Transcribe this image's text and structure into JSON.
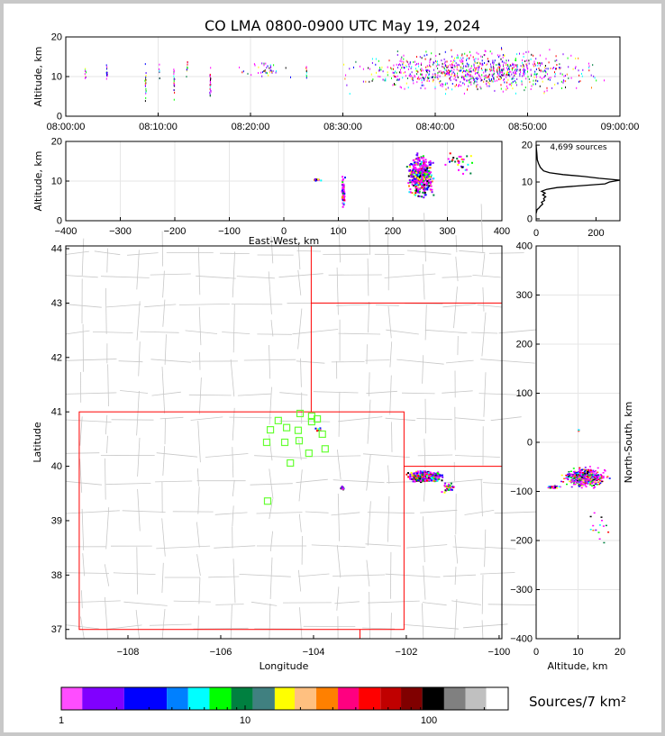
{
  "chart_data": [
    {
      "type": "scatter",
      "name": "time-altitude",
      "title": "CO LMA 0800-0900 UTC May 19, 2024",
      "ylabel": "Altitude, km",
      "xlim_minutes": [
        0,
        60
      ],
      "ylim": [
        0,
        20
      ],
      "xticks": [
        "08:00:00",
        "08:10:00",
        "08:20:00",
        "08:30:00",
        "08:40:00",
        "08:50:00",
        "09:00:00"
      ],
      "yticks": [
        "0",
        "10",
        "20"
      ],
      "clusters": [
        {
          "t": [
            28,
            60
          ],
          "alt": [
            5,
            18
          ],
          "n": 900
        },
        {
          "t": [
            2,
            2.2
          ],
          "alt": [
            9,
            14
          ],
          "n": 12
        },
        {
          "t": [
            4.3,
            4.5
          ],
          "alt": [
            8,
            14
          ],
          "n": 14
        },
        {
          "t": [
            8.5,
            8.7
          ],
          "alt": [
            3,
            14
          ],
          "n": 25
        },
        {
          "t": [
            10,
            10.2
          ],
          "alt": [
            9,
            14
          ],
          "n": 8
        },
        {
          "t": [
            11.6,
            11.8
          ],
          "alt": [
            3,
            15
          ],
          "n": 22
        },
        {
          "t": [
            13,
            13.2
          ],
          "alt": [
            9,
            15
          ],
          "n": 10
        },
        {
          "t": [
            15.5,
            15.7
          ],
          "alt": [
            2,
            16
          ],
          "n": 30
        },
        {
          "t": [
            18,
            25
          ],
          "alt": [
            9,
            15
          ],
          "n": 40
        },
        {
          "t": [
            25.9,
            26.1
          ],
          "alt": [
            8,
            14
          ],
          "n": 10
        }
      ]
    },
    {
      "type": "scatter",
      "name": "eastwest-altitude",
      "xlabel": "East-West, km",
      "ylabel": "Altitude, km",
      "xlim": [
        -400,
        400
      ],
      "ylim": [
        0,
        20
      ],
      "xticks": [
        "−400",
        "−300",
        "−200",
        "−100",
        "0",
        "100",
        "200",
        "300",
        "400"
      ],
      "yticks": [
        "0",
        "10",
        "20"
      ],
      "clusters": [
        {
          "x": [
            222,
            278
          ],
          "alt": [
            5,
            18
          ],
          "n": 500
        },
        {
          "x": [
            104,
            112
          ],
          "alt": [
            2,
            13
          ],
          "n": 60
        },
        {
          "x": [
            52,
            68
          ],
          "alt": [
            10.2,
            10.8
          ],
          "n": 12
        },
        {
          "x": [
            280,
            360
          ],
          "alt": [
            10,
            19
          ],
          "n": 30
        }
      ]
    },
    {
      "type": "line",
      "name": "altitude-histogram",
      "annotation": "4,699 sources",
      "xlim": [
        0,
        280
      ],
      "ylim": [
        -0.5,
        21
      ],
      "xticks": [
        "0",
        "200"
      ],
      "yticks": [
        "0",
        "10",
        "20"
      ],
      "alt": [
        1.5,
        2.5,
        3,
        3.5,
        4,
        4.5,
        5,
        5.5,
        6,
        6.5,
        7,
        7.5,
        8,
        8.5,
        9,
        9.5,
        10,
        10.5,
        11,
        11.5,
        12,
        12.5,
        13,
        14,
        15,
        16,
        17,
        18,
        19,
        20
      ],
      "count": [
        0,
        3,
        10,
        15,
        22,
        18,
        28,
        25,
        32,
        22,
        30,
        18,
        35,
        70,
        150,
        230,
        245,
        280,
        210,
        160,
        90,
        45,
        25,
        14,
        8,
        4,
        3,
        2,
        1,
        0
      ]
    },
    {
      "type": "scatter",
      "name": "plan-view-map",
      "xlabel": "Longitude",
      "ylabel": "Latitude",
      "xlim": [
        -109.34,
        -99.94
      ],
      "ylim": [
        36.83,
        44.05
      ],
      "xticks": [
        "−108",
        "−106",
        "−104",
        "−102",
        "−100"
      ],
      "yticks": [
        "37",
        "38",
        "39",
        "40",
        "41",
        "42",
        "43",
        "44"
      ],
      "stations": [
        [
          -104.76,
          40.84
        ],
        [
          -104.93,
          40.67
        ],
        [
          -104.58,
          40.71
        ],
        [
          -105.01,
          40.44
        ],
        [
          -104.62,
          40.44
        ],
        [
          -104.33,
          40.66
        ],
        [
          -104.31,
          40.47
        ],
        [
          -104.04,
          40.92
        ],
        [
          -104.04,
          40.82
        ],
        [
          -103.92,
          40.87
        ],
        [
          -103.81,
          40.59
        ],
        [
          -103.75,
          40.32
        ],
        [
          -104.1,
          40.24
        ],
        [
          -104.5,
          40.06
        ],
        [
          -104.99,
          39.36
        ],
        [
          -104.29,
          40.97
        ]
      ],
      "clusters": [
        {
          "lon": [
            -102.05,
            -101.2
          ],
          "lat": [
            39.7,
            39.95
          ],
          "n": 450
        },
        {
          "lon": [
            -101.3,
            -100.9
          ],
          "lat": [
            39.5,
            39.75
          ],
          "n": 40
        },
        {
          "lon": [
            -103.45,
            -103.35
          ],
          "lat": [
            39.58,
            39.65
          ],
          "n": 20
        },
        {
          "lon": [
            -104.0,
            -103.8
          ],
          "lat": [
            40.65,
            40.75
          ],
          "n": 8
        }
      ]
    },
    {
      "type": "scatter",
      "name": "altitude-northsouth",
      "xlabel": "Altitude, km",
      "ylabel": "North-South, km",
      "xlim": [
        0,
        20
      ],
      "ylim": [
        -400,
        400
      ],
      "xticks": [
        "0",
        "10",
        "20"
      ],
      "yticks": [
        "−400",
        "−300",
        "−200",
        "−100",
        "0",
        "100",
        "200",
        "300",
        "400"
      ],
      "clusters": [
        {
          "alt": [
            5,
            18
          ],
          "ns": [
            -95,
            -45
          ],
          "n": 450
        },
        {
          "alt": [
            2,
            6
          ],
          "ns": [
            -94,
            -86
          ],
          "n": 40
        },
        {
          "alt": [
            10,
            20
          ],
          "ns": [
            -220,
            -120
          ],
          "n": 15
        },
        {
          "alt": [
            9.8,
            10.2
          ],
          "ns": [
            22,
            32
          ],
          "n": 4
        }
      ]
    },
    {
      "type": "colorbar",
      "name": "density-colorbar",
      "label": "Sources/7 km²",
      "scale": "log",
      "ticks": [
        "1",
        "10",
        "100"
      ],
      "tick_values": [
        1,
        10,
        100
      ],
      "bin_edges": [
        1,
        1.3,
        2.2,
        3.75,
        4.9,
        6.4,
        8.4,
        11,
        14.5,
        18.6,
        24.4,
        32,
        41.5,
        54.5,
        70.5,
        92,
        121,
        158,
        205,
        270
      ],
      "colors": [
        "#ff4dff",
        "#8000ff",
        "#0000ff",
        "#0080ff",
        "#00ffff",
        "#00ff00",
        "#008040",
        "#408080",
        "#ffff00",
        "#ffc080",
        "#ff8000",
        "#ff0080",
        "#ff0000",
        "#c00000",
        "#800000",
        "#000000",
        "#808080",
        "#c0c0c0",
        "#ffffff"
      ]
    }
  ]
}
